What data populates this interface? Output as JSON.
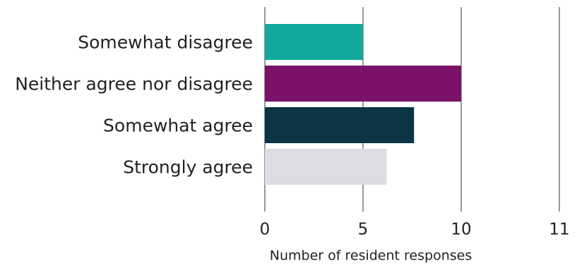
{
  "chart_data": {
    "type": "bar",
    "orientation": "horizontal",
    "x_label": "Number of resident responses",
    "categories": [
      "Somewhat disagree",
      "Neither agree nor disagree",
      "Somewhat agree",
      "Strongly agree"
    ],
    "values": [
      5,
      10,
      7.6,
      6.2
    ],
    "colors": [
      "#13a89e",
      "#7b1169",
      "#0b3544",
      "#dddbe3"
    ],
    "xlim": [
      0,
      11
    ],
    "xticks": [
      0,
      5,
      10,
      11
    ],
    "grid": true
  }
}
